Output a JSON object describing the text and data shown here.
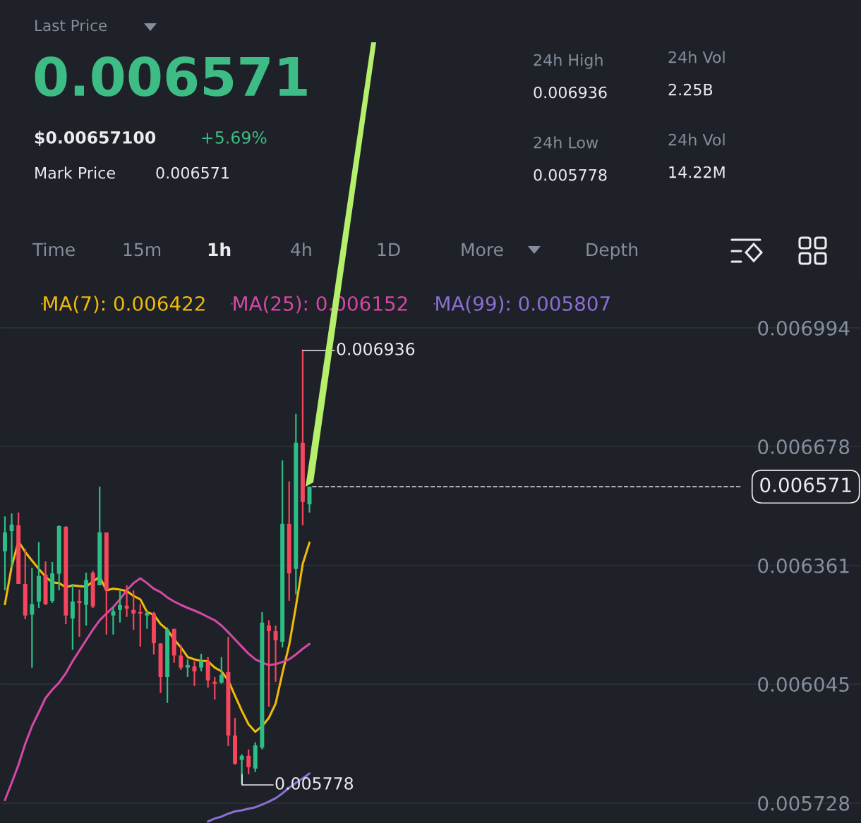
{
  "chart_data": {
    "type": "candlestick",
    "categories": [
      null,
      null,
      null,
      null,
      null,
      null,
      null,
      null,
      null,
      null,
      null,
      null,
      null,
      null,
      null,
      null,
      null,
      null,
      null,
      null,
      null,
      null,
      null,
      null,
      null,
      null,
      null,
      null,
      null,
      null,
      null,
      null,
      null,
      null,
      null,
      null,
      null,
      null,
      null,
      null,
      null,
      null,
      null,
      null,
      null,
      null,
      null,
      null,
      null,
      null,
      null,
      null,
      null,
      null,
      null,
      null,
      null,
      null,
      null,
      null,
      null,
      null,
      null,
      null,
      null,
      null,
      null,
      null,
      null,
      null,
      null,
      null,
      null,
      null,
      null,
      null,
      null,
      null,
      null,
      null,
      null,
      null,
      null,
      null,
      null,
      null,
      null,
      null,
      null,
      null,
      null,
      null,
      null,
      null,
      null,
      null,
      null,
      null,
      null,
      null,
      null,
      null,
      null,
      null,
      null,
      null,
      null,
      null,
      null,
      null,
      null,
      null,
      null,
      null,
      null,
      null,
      null,
      null,
      null,
      null,
      null,
      null,
      null,
      null,
      null,
      null,
      null
    ],
    "ohlc": [
      [
        0.006399,
        0.006492,
        0.006295,
        0.006449
      ],
      [
        0.006453,
        0.0065,
        0.006355,
        0.00647
      ],
      [
        0.006468,
        0.006502,
        0.006312,
        0.006312
      ],
      [
        0.006312,
        0.006406,
        0.006218,
        0.006228
      ],
      [
        0.00623,
        0.006355,
        0.006089,
        0.006258
      ],
      [
        0.006265,
        0.006423,
        0.006248,
        0.006333
      ],
      [
        0.006337,
        0.006372,
        0.006256,
        0.006258
      ],
      [
        0.006267,
        0.00637,
        0.006261,
        0.00634
      ],
      [
        0.006339,
        0.006468,
        0.006295,
        0.006466
      ],
      [
        0.006464,
        0.006466,
        0.006205,
        0.006228
      ],
      [
        0.00622,
        0.006312,
        0.006136,
        0.006265
      ],
      [
        0.006267,
        0.006297,
        0.006171,
        0.006261
      ],
      [
        0.006256,
        0.006342,
        0.006201,
        0.006322
      ],
      [
        0.006342,
        0.006346,
        0.006248,
        0.006252
      ],
      [
        0.006308,
        0.006571,
        0.006308,
        0.006449
      ],
      [
        0.006449,
        0.006449,
        0.006177,
        0.006295
      ],
      [
        0.006228,
        0.006252,
        0.006177,
        0.006239
      ],
      [
        0.006243,
        0.006293,
        0.006209,
        0.006256
      ],
      [
        0.006254,
        0.006308,
        0.006224,
        0.006246
      ],
      [
        0.006243,
        0.006295,
        0.00619,
        0.006233
      ],
      [
        0.006237,
        0.006258,
        0.006145,
        0.006233
      ],
      [
        0.006228,
        0.006239,
        0.006192,
        0.006235
      ],
      [
        0.006233,
        0.006237,
        0.006124,
        0.006154
      ],
      [
        0.006153,
        0.006154,
        0.006021,
        0.006064
      ],
      [
        0.006064,
        0.006196,
        0.005995,
        0.00619
      ],
      [
        0.006192,
        0.006192,
        0.006102,
        0.006121
      ],
      [
        0.006121,
        0.006149,
        0.006083,
        0.006089
      ],
      [
        0.006089,
        0.006111,
        0.006064,
        0.006096
      ],
      [
        0.006092,
        0.006106,
        0.00604,
        0.006079
      ],
      [
        0.006089,
        0.006126,
        0.006079,
        0.006107
      ],
      [
        0.006107,
        0.006117,
        0.006036,
        0.006055
      ],
      [
        0.006051,
        0.006064,
        0.006004,
        0.006046
      ],
      [
        0.006049,
        0.006117,
        0.006046,
        0.00607
      ],
      [
        0.006077,
        0.006171,
        0.00588,
        0.005908
      ],
      [
        0.005908,
        0.005955,
        0.00583,
        0.005833
      ],
      [
        0.005843,
        0.005858,
        0.005778,
        0.005854
      ],
      [
        0.005854,
        0.005871,
        0.005805,
        0.005824
      ],
      [
        0.00582,
        0.00589,
        0.005811,
        0.005882
      ],
      [
        0.005876,
        0.006237,
        0.005871,
        0.006209
      ],
      [
        0.006201,
        0.006215,
        0.005985,
        0.006186
      ],
      [
        0.006186,
        0.006201,
        0.006051,
        0.006162
      ],
      [
        0.006158,
        0.006641,
        0.006143,
        0.006472
      ],
      [
        0.006472,
        0.006585,
        0.006267,
        0.00634
      ],
      [
        0.006352,
        0.006765,
        0.006284,
        0.006688
      ],
      [
        0.006688,
        0.006936,
        0.006468,
        0.00653
      ],
      [
        0.006524,
        0.006571,
        0.006502,
        0.006571
      ],
      null,
      null,
      null,
      null,
      null,
      null,
      null,
      null,
      null,
      null,
      null,
      null,
      null,
      null,
      null,
      null,
      null,
      null,
      null,
      null,
      null,
      null,
      null,
      null,
      null,
      null,
      null,
      null,
      null,
      null,
      null,
      null,
      null,
      null,
      null,
      null,
      null,
      null,
      null,
      null,
      null,
      null,
      null,
      null,
      null,
      null,
      null,
      null,
      null,
      null,
      null,
      null,
      null,
      null,
      null,
      null,
      null,
      null,
      null,
      null,
      null,
      null,
      null,
      null,
      null,
      null,
      null,
      null,
      null,
      null,
      null,
      null,
      null,
      null,
      null,
      null,
      null,
      null,
      null,
      null,
      null
    ],
    "series": [
      {
        "name": "MA(7): 0.006422",
        "type": "line",
        "color": "#f0b90b",
        "values": [
          0.006258,
          0.006359,
          0.006425,
          0.006397,
          0.006374,
          0.006352,
          0.006331,
          0.006316,
          0.006314,
          0.006303,
          0.006308,
          0.006306,
          0.006305,
          0.006318,
          0.006331,
          0.006295,
          0.006299,
          0.006297,
          0.006293,
          0.00628,
          0.006271,
          0.006237,
          0.00623,
          0.006205,
          0.00619,
          0.006164,
          0.006143,
          0.006117,
          0.006111,
          0.006107,
          0.006106,
          0.006089,
          0.006079,
          0.006055,
          0.006014,
          0.005974,
          0.005938,
          0.005918,
          0.005933,
          0.005955,
          0.005993,
          0.006074,
          0.006149,
          0.006252,
          0.006365,
          0.006422,
          null,
          null,
          null,
          null,
          null,
          null,
          null,
          null,
          null,
          null,
          null,
          null,
          null,
          null,
          null,
          null,
          null,
          null,
          null,
          null,
          null,
          null,
          null,
          null,
          null,
          null,
          null,
          null,
          null,
          null,
          null,
          null,
          null,
          null,
          null,
          null,
          null,
          null,
          null,
          null,
          null,
          null,
          null,
          null,
          null,
          null,
          null,
          null,
          null,
          null,
          null,
          null,
          null,
          null,
          null,
          null,
          null,
          null,
          null,
          null,
          null,
          null,
          null,
          null,
          null,
          null,
          null,
          null,
          null,
          null,
          null,
          null,
          null,
          null,
          null,
          null,
          null,
          null,
          null,
          null,
          null
        ]
      },
      {
        "name": "MA(25): 0.006152",
        "type": "line",
        "color": "#d548a6",
        "values": [
          0.005736,
          0.005782,
          0.00583,
          0.005886,
          0.005933,
          0.00597,
          0.006008,
          0.00603,
          0.006049,
          0.006074,
          0.006106,
          0.006134,
          0.006162,
          0.00619,
          0.006215,
          0.006233,
          0.00625,
          0.006271,
          0.006295,
          0.006314,
          0.006327,
          0.006314,
          0.006299,
          0.00629,
          0.006276,
          0.006265,
          0.006256,
          0.006248,
          0.006241,
          0.006233,
          0.006224,
          0.006215,
          0.006201,
          0.006183,
          0.006164,
          0.006145,
          0.006126,
          0.006111,
          0.006102,
          0.006096,
          0.006098,
          0.006104,
          0.006111,
          0.006124,
          0.006139,
          0.006152,
          null,
          null,
          null,
          null,
          null,
          null,
          null,
          null,
          null,
          null,
          null,
          null,
          null,
          null,
          null,
          null,
          null,
          null,
          null,
          null,
          null,
          null,
          null,
          null,
          null,
          null,
          null,
          null,
          null,
          null,
          null,
          null,
          null,
          null,
          null,
          null,
          null,
          null,
          null,
          null,
          null,
          null,
          null,
          null,
          null,
          null,
          null,
          null,
          null,
          null,
          null,
          null,
          null,
          null,
          null,
          null,
          null,
          null,
          null,
          null,
          null,
          null,
          null,
          null,
          null,
          null,
          null,
          null,
          null,
          null,
          null,
          null,
          null,
          null,
          null,
          null,
          null,
          null,
          null,
          null,
          null
        ]
      },
      {
        "name": "MA(99): 0.005807",
        "type": "line",
        "color": "#8b6fd4",
        "values": [
          null,
          null,
          null,
          null,
          null,
          null,
          null,
          null,
          null,
          null,
          null,
          null,
          null,
          null,
          null,
          null,
          null,
          null,
          null,
          null,
          null,
          null,
          null,
          null,
          null,
          null,
          null,
          null,
          null,
          null,
          0.005679,
          0.005687,
          0.005692,
          0.0057,
          0.005706,
          0.005709,
          0.005713,
          0.005717,
          0.005724,
          0.005732,
          0.005741,
          0.005754,
          0.005769,
          0.005782,
          0.005794,
          0.005807,
          null,
          null,
          null,
          null,
          null,
          null,
          null,
          null,
          null,
          null,
          null,
          null,
          null,
          null,
          null,
          null,
          null,
          null,
          null,
          null,
          null,
          null,
          null,
          null,
          null,
          null,
          null,
          null,
          null,
          null,
          null,
          null,
          null,
          null,
          null,
          null,
          null,
          null,
          null,
          null,
          null,
          null,
          null,
          null,
          null,
          null,
          null,
          null,
          null,
          null,
          null,
          null,
          null,
          null,
          null,
          null,
          null,
          null,
          null,
          null,
          null,
          null,
          null,
          null,
          null,
          null,
          null,
          null,
          null,
          null,
          null,
          null,
          null,
          null,
          null,
          null,
          null,
          null,
          null,
          null,
          null
        ]
      }
    ],
    "ylim": [
      0.005675,
      0.007116
    ],
    "yticks": [
      0.006994,
      0.006678,
      0.006361,
      0.006045,
      0.005728
    ],
    "tick_labels": "y",
    "grid": "y",
    "legend": "top left",
    "ref_lines": [
      {
        "axis": "y",
        "value": 0.006571,
        "label": "0.006571",
        "line_style": "dashed"
      }
    ],
    "annotations": [
      "Last Price",
      "0.006571",
      "$0.00657100",
      "+5.69%",
      "Mark Price",
      "0.006571",
      "24h High",
      "0.006936",
      "24h Low",
      "0.005778",
      "24h Vol",
      "2.25B",
      "24h Vol",
      "14.22M",
      "Time",
      "15m",
      "1h",
      "4h",
      "1D",
      "More",
      "Depth",
      "0.006936",
      "0.005778"
    ]
  }
}
